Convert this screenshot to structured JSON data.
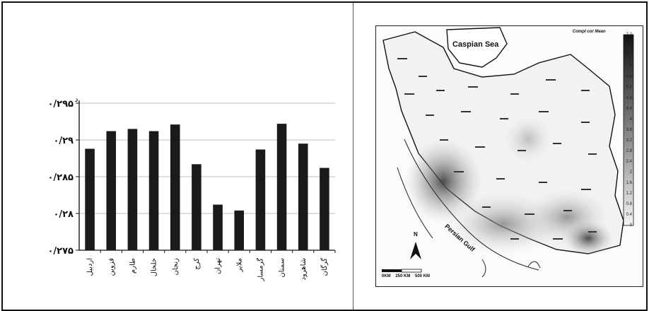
{
  "chart_data": {
    "type": "bar",
    "categories": [
      "اردبیل",
      "قزوین",
      "طارم",
      "خلخال",
      "زنجان",
      "کرج",
      "تهران",
      "ملایر",
      "گرمسار",
      "سمنان",
      "شاهرود",
      "گرگان"
    ],
    "values": [
      0.2888,
      0.2912,
      0.2915,
      0.2912,
      0.2921,
      0.2867,
      0.2812,
      0.2804,
      0.2887,
      0.2922,
      0.2895,
      0.2862
    ],
    "ylim": [
      0.275,
      0.295
    ],
    "yticks": [
      "۰/۲۹۵",
      "۰/۲۹",
      "۰/۲۸۵",
      "۰/۲۸",
      "۰/۲۷۵"
    ],
    "ylabel": "د",
    "grid": true,
    "bar_color": "#1a1a1a"
  },
  "map": {
    "legend_title": "Compl cor Mean",
    "caspian_label": "Caspian Sea",
    "gulf_label": "Persian Gulf",
    "north_label": "N",
    "scale_label": "0KM    250 KM    500 KM",
    "colorbar_ticks": [
      "7.2",
      "6.8",
      "6.4",
      "6",
      "5.6",
      "5.2",
      "4.8",
      "4.4",
      "4",
      "3.6",
      "3.2",
      "2.8",
      "2.4",
      "2",
      "1.6",
      "1.2",
      "0.8",
      "0.4",
      "0"
    ]
  }
}
